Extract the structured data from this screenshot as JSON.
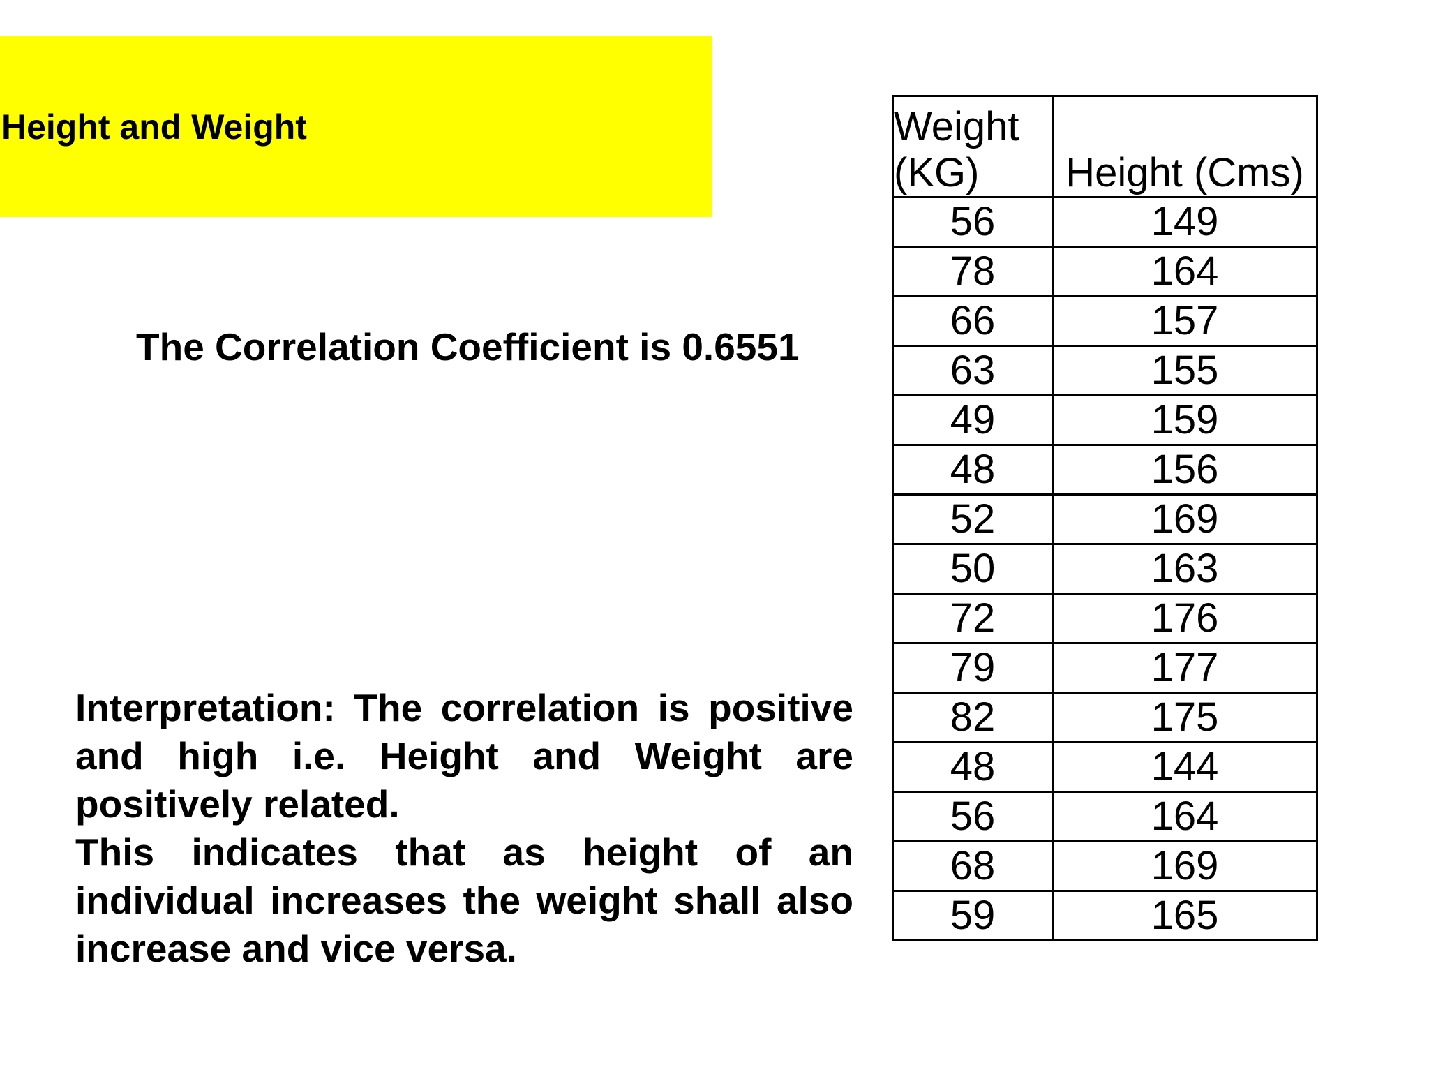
{
  "slide": {
    "title": "Height and Weight",
    "coefficient_statement": "The Correlation Coefficient is 0.6551",
    "interpretation_paragraphs": [
      "Interpretation: The correlation is positive and high i.e. Height and Weight are positively related.",
      "This indicates that as height of an individual increases the weight shall also increase and vice versa."
    ],
    "banner_color": "#ffff00"
  },
  "table": {
    "headers": {
      "weight": "Weight\n(KG)",
      "height": "Height (Cms)"
    },
    "rows": [
      [
        "56",
        "149"
      ],
      [
        "78",
        "164"
      ],
      [
        "66",
        "157"
      ],
      [
        "63",
        "155"
      ],
      [
        "49",
        "159"
      ],
      [
        "48",
        "156"
      ],
      [
        "52",
        "169"
      ],
      [
        "50",
        "163"
      ],
      [
        "72",
        "176"
      ],
      [
        "79",
        "177"
      ],
      [
        "82",
        "175"
      ],
      [
        "48",
        "144"
      ],
      [
        "56",
        "164"
      ],
      [
        "68",
        "169"
      ],
      [
        "59",
        "165"
      ]
    ]
  }
}
